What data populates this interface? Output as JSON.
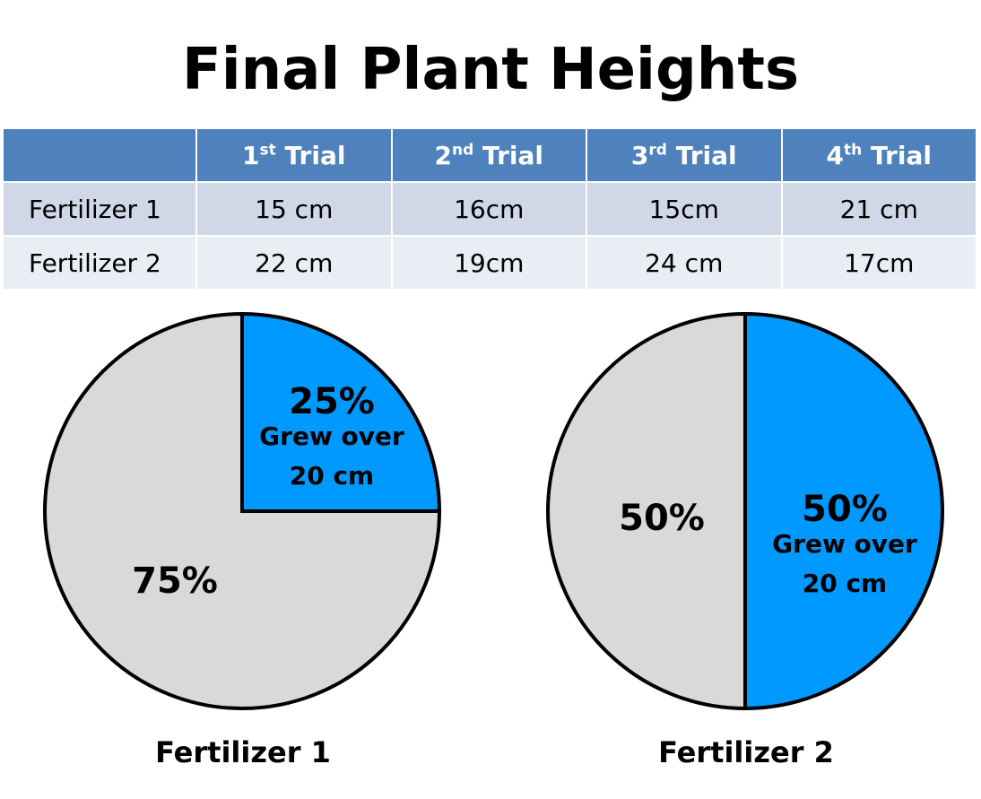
{
  "title": "Final Plant Heights",
  "table": {
    "columns": [
      {
        "num": "1",
        "sup": "st",
        "word": "Trial"
      },
      {
        "num": "2",
        "sup": "nd",
        "word": "Trial"
      },
      {
        "num": "3",
        "sup": "rd",
        "word": "Trial"
      },
      {
        "num": "4",
        "sup": "th",
        "word": "Trial"
      }
    ],
    "rows": [
      {
        "label": "Fertilizer 1",
        "cells": [
          "15 cm",
          "16cm",
          "15cm",
          "21 cm"
        ]
      },
      {
        "label": "Fertilizer 2",
        "cells": [
          "22 cm",
          "19cm",
          "24 cm",
          "17cm"
        ]
      }
    ]
  },
  "colors": {
    "highlight": "#0099ff",
    "rest": "#d9d9d9",
    "header": "#4f81bd"
  },
  "chart_data": [
    {
      "type": "pie",
      "title": "Fertilizer 1",
      "slices": [
        {
          "value": 25,
          "label": "25%",
          "sublabel": [
            "Grew over",
            "20 cm"
          ],
          "color": "#0099ff"
        },
        {
          "value": 75,
          "label": "75%",
          "sublabel": [],
          "color": "#d9d9d9"
        }
      ]
    },
    {
      "type": "pie",
      "title": "Fertilizer 2",
      "slices": [
        {
          "value": 50,
          "label": "50%",
          "sublabel": [
            "Grew over",
            "20 cm"
          ],
          "color": "#0099ff"
        },
        {
          "value": 50,
          "label": "50%",
          "sublabel": [],
          "color": "#d9d9d9"
        }
      ]
    }
  ]
}
